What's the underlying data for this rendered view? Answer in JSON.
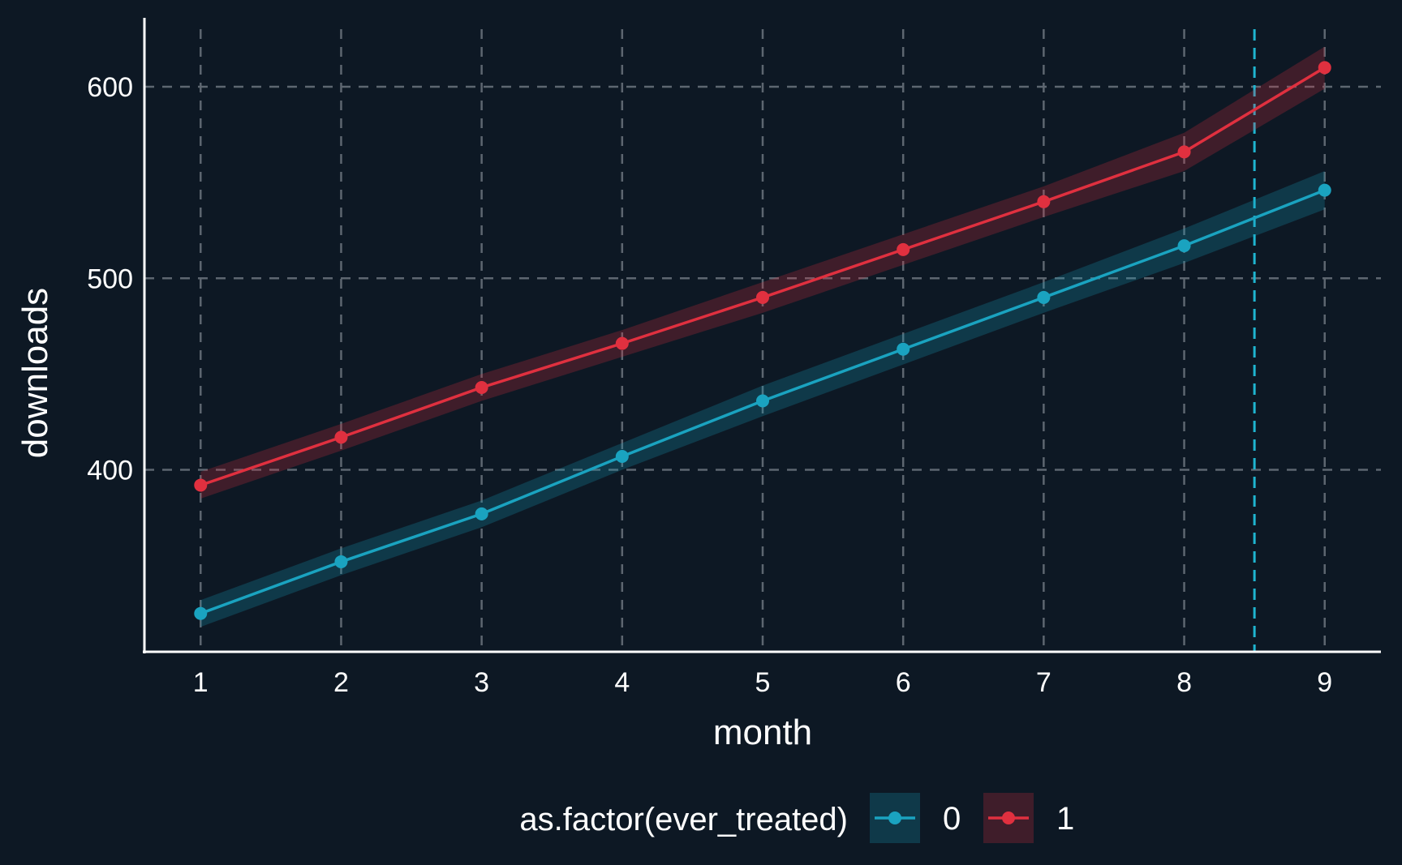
{
  "chart_data": {
    "type": "line",
    "title": "",
    "xlabel": "month",
    "ylabel": "downloads",
    "x": [
      1,
      2,
      3,
      4,
      5,
      6,
      7,
      8,
      9
    ],
    "xlim": [
      0.6,
      9.4
    ],
    "ylim": [
      305,
      636
    ],
    "x_ticks": [
      1,
      2,
      3,
      4,
      5,
      6,
      7,
      8,
      9
    ],
    "y_ticks": [
      400,
      500,
      600
    ],
    "grid": true,
    "confidence_bands": true,
    "vline": {
      "x": 8.5,
      "color": "#1fb5d0"
    },
    "legend": {
      "title": "as.factor(ever_treated)",
      "position": "bottom"
    },
    "series": [
      {
        "name": "0",
        "color": "#1aa3c0",
        "values": [
          325,
          352,
          377,
          407,
          436,
          463,
          490,
          517,
          546
        ],
        "lower": [
          318,
          345,
          370,
          400,
          428,
          455,
          482,
          508,
          536
        ],
        "upper": [
          332,
          359,
          384,
          414,
          444,
          471,
          498,
          526,
          556
        ]
      },
      {
        "name": "1",
        "color": "#e0303f",
        "values": [
          392,
          417,
          443,
          466,
          490,
          515,
          540,
          566,
          610
        ],
        "lower": [
          385,
          410,
          436,
          459,
          482,
          507,
          532,
          556,
          599
        ],
        "upper": [
          399,
          424,
          450,
          473,
          498,
          523,
          548,
          576,
          621
        ]
      }
    ]
  }
}
